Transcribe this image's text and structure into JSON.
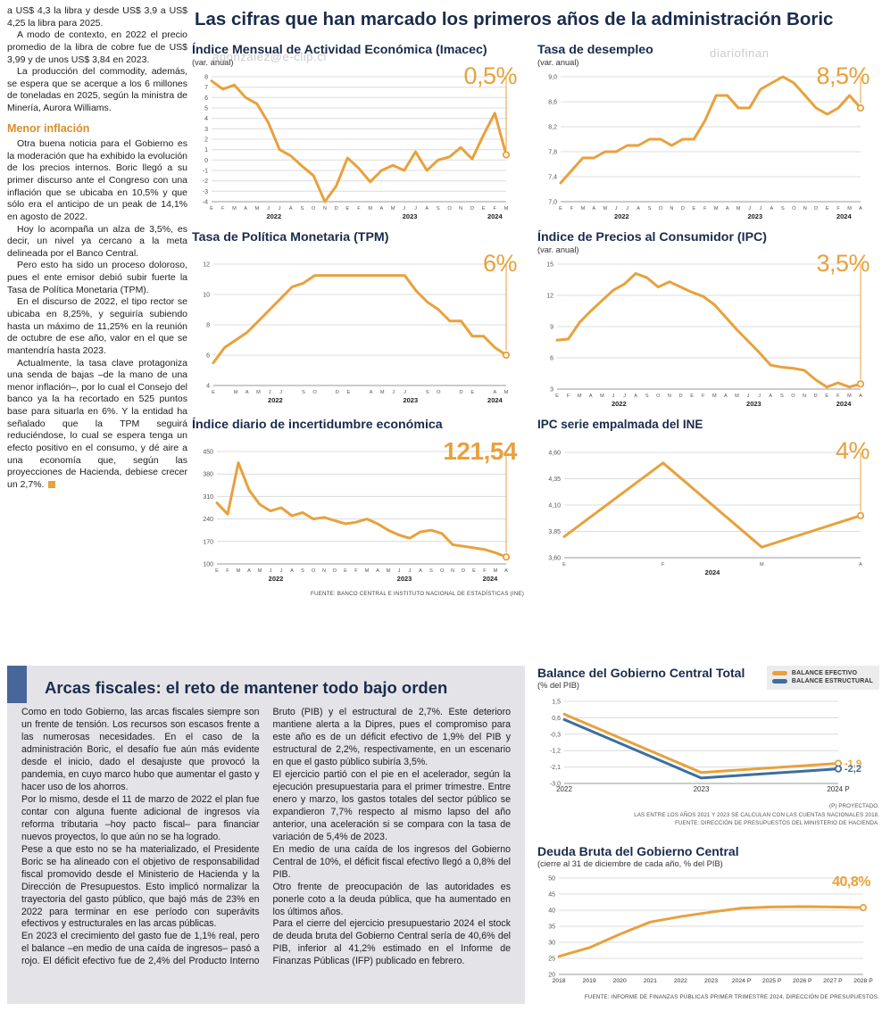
{
  "main_title": "Las cifras que han marcado los primeros años de la administración Boric",
  "colors": {
    "accent_orange": "#E8A13C",
    "navy": "#1A2B4C",
    "steel_blue": "#47679A",
    "line_blue": "#3C6E9F",
    "panel_gray": "#E4E4E8"
  },
  "watermarks": {
    "w1": "agonzalez@e-clip.cl",
    "w2": "diariofinan",
    "w3": "ero#5agonzalez@e-clip.cl"
  },
  "article_left": {
    "paragraphs_top": [
      "a US$ 4,3 la libra y desde US$ 3,9 a US$ 4,25 la libra para 2025.",
      "A modo de contexto, en 2022 el precio promedio de la libra de cobre fue de US$ 3,99 y de unos US$ 3,84 en 2023.",
      "La producción del commodity, además, se espera que se acerque a los 6 millones de toneladas en 2025, según la ministra de Minería, Aurora Williams."
    ],
    "heading": "Menor inflación",
    "paragraphs": [
      "Otra buena noticia para el Gobierno es la moderación que ha exhibido la evolución de los precios internos. Boric llegó a su primer discurso ante el Congreso con una inflación que se ubicaba en 10,5% y que sólo era el anticipo de un peak de 14,1% en agosto de 2022.",
      "Hoy lo acompaña un alza de 3,5%, es decir, un nivel ya cercano a la meta delineada por el Banco Central.",
      "Pero esto ha sido un proceso doloroso, pues el ente emisor debió subir fuerte la Tasa de Política Monetaria (TPM).",
      "En el discurso de 2022, el tipo rector se ubicaba en 8,25%, y seguiría subiendo hasta un máximo de 11,25% en la reunión de octubre de ese año, valor en el que se mantendría hasta 2023.",
      "Actualmente, la tasa clave protagoniza una senda de bajas –de la mano de una menor inflación–, por lo cual el Consejo del banco ya la ha recortado en 525 puntos base para situarla en 6%. Y la entidad ha señalado que la TPM seguirá reduciéndose, lo cual se espera tenga un efecto positivo en el consumo, y dé aire a una economía que, según las proyecciones de Hacienda, debiese crecer un 2,7%."
    ]
  },
  "arcas": {
    "title": "Arcas fiscales: el reto de mantener todo bajo orden",
    "paragraphs": [
      "Como en todo Gobierno, las arcas fiscales siempre son un frente de tensión. Los recursos son escasos frente a las numerosas necesidades. En el caso de la administración Boric, el desafío fue aún más evidente desde el inicio, dado el desajuste que provocó la pandemia, en cuyo marco hubo que aumentar el gasto y hacer uso de los ahorros.",
      "Por lo mismo, desde el 11 de marzo de 2022 el plan fue contar con alguna fuente adicional de ingresos vía reforma tributaria –hoy pacto fiscal– para financiar nuevos proyectos, lo que aún no se ha logrado.",
      "Pese a que esto no se ha materializado, el Presidente Boric se ha alineado con el objetivo de responsabilidad fiscal promovido desde el Ministerio de Hacienda y la Dirección de Presupuestos. Esto implicó normalizar la trayectoria del gasto público, que bajó más de 23% en 2022 para terminar en ese período con superávits efectivos y estructurales en las arcas públicas.",
      "En 2023 el crecimiento del gasto fue de 1,1% real, pero el balance –en medio de una caída de ingresos– pasó a rojo. El déficit efectivo fue de 2,4% del Producto Interno Bruto (PIB) y el estructural de 2,7%. Este deterioro mantiene alerta a la Dipres, pues el compromiso para este año es de un déficit efectivo de 1,9% del PIB y estructural de 2,2%, respectivamente, en un escenario en que el gasto público subiría 3,5%.",
      "El ejercicio partió con el pie en el acelerador, según la ejecución presupuestaria para el primer trimestre. Entre enero y marzo, los gastos totales del sector público se expandieron 7,7% respecto al mismo lapso del año anterior, una aceleración si se compara con la tasa de variación de 5,4% de 2023.",
      "En medio de una caída de los ingresos del Gobierno Central de 10%, el déficit fiscal efectivo llegó a 0,8% del PIB.",
      "Otro frente de preocupación de las autoridades es ponerle coto a la deuda pública, que ha aumentado en los últimos años.",
      "Para el cierre del ejercicio presupuestario 2024 el stock de deuda bruta del Gobierno Central sería de 40,6% del PIB, inferior al 41,2% estimado en el Informe de Finanzas Públicas (IFP) publicado en febrero."
    ]
  },
  "chart_data": [
    {
      "key": "imacec",
      "type": "line",
      "title": "Índice Mensual de Actividad Económica (Imacec)",
      "subtitle": "(var. anual)",
      "big_value": "0,5%",
      "ymin": -4,
      "ymax": 8,
      "pointer": true,
      "yticks": [
        {
          "l": "8",
          "v": 8
        },
        {
          "l": "7",
          "v": 7
        },
        {
          "l": "6",
          "v": 6
        },
        {
          "l": "5",
          "v": 5
        },
        {
          "l": "4",
          "v": 4
        },
        {
          "l": "3",
          "v": 3
        },
        {
          "l": "2",
          "v": 2
        },
        {
          "l": "1",
          "v": 1
        },
        {
          "l": "0",
          "v": 0
        },
        {
          "l": "-1",
          "v": -1
        },
        {
          "l": "-2",
          "v": -2
        },
        {
          "l": "-3",
          "v": -3
        },
        {
          "l": "-4",
          "v": -4
        }
      ],
      "x_labels": [
        "E",
        "F",
        "M",
        "A",
        "M",
        "J",
        "J",
        "A",
        "S",
        "O",
        "N",
        "D",
        "E",
        "F",
        "M",
        "A",
        "M",
        "J",
        "J",
        "A",
        "S",
        "O",
        "N",
        "D",
        "E",
        "F",
        "M"
      ],
      "years": [
        {
          "label": "2022",
          "at": 5.5
        },
        {
          "label": "2023",
          "at": 17.5
        },
        {
          "label": "2024",
          "at": 25
        }
      ],
      "series": [
        {
          "name": "Imacec",
          "color": "#E8A13C",
          "values": [
            7.6,
            6.8,
            7.2,
            6.0,
            5.4,
            3.6,
            1.0,
            0.4,
            -0.6,
            -1.5,
            -4.0,
            -2.5,
            0.2,
            -0.8,
            -2.1,
            -1.0,
            -0.5,
            -1.0,
            0.8,
            -1.0,
            0.0,
            0.3,
            1.2,
            0.1,
            2.4,
            4.5,
            0.5
          ]
        }
      ]
    },
    {
      "key": "desempleo",
      "type": "line",
      "title": "Tasa de desempleo",
      "subtitle": "(var. anual)",
      "big_value": "8,5%",
      "ymin": 7.0,
      "ymax": 9.0,
      "pointer": true,
      "yticks": [
        {
          "l": "9,0",
          "v": 9.0
        },
        {
          "l": "8,6",
          "v": 8.6
        },
        {
          "l": "8,2",
          "v": 8.2
        },
        {
          "l": "7,8",
          "v": 7.8
        },
        {
          "l": "7,4",
          "v": 7.4
        },
        {
          "l": "7,0",
          "v": 7.0
        }
      ],
      "x_labels": [
        "E",
        "F",
        "M",
        "A",
        "M",
        "J",
        "J",
        "A",
        "S",
        "O",
        "N",
        "D",
        "E",
        "F",
        "M",
        "A",
        "M",
        "J",
        "J",
        "A",
        "S",
        "O",
        "N",
        "D",
        "E",
        "F",
        "M",
        "A"
      ],
      "years": [
        {
          "label": "2022",
          "at": 5.5
        },
        {
          "label": "2023",
          "at": 17.5
        },
        {
          "label": "2024",
          "at": 25.5
        }
      ],
      "series": [
        {
          "name": "Tasa de desempleo",
          "color": "#E8A13C",
          "values": [
            7.3,
            7.5,
            7.7,
            7.7,
            7.8,
            7.8,
            7.9,
            7.9,
            8.0,
            8.0,
            7.9,
            8.0,
            8.0,
            8.3,
            8.7,
            8.7,
            8.5,
            8.5,
            8.8,
            8.9,
            9.0,
            8.9,
            8.7,
            8.5,
            8.4,
            8.5,
            8.7,
            8.5
          ]
        }
      ]
    },
    {
      "key": "tpm",
      "type": "line",
      "title": "Tasa de Política Monetaria (TPM)",
      "big_value": "6%",
      "ymin": 4,
      "ymax": 12,
      "pointer": true,
      "yticks": [
        {
          "l": "12",
          "v": 12
        },
        {
          "l": "10",
          "v": 10
        },
        {
          "l": "8",
          "v": 8
        },
        {
          "l": "6",
          "v": 6
        },
        {
          "l": "4",
          "v": 4
        }
      ],
      "x_labels": [
        "E",
        "",
        "M",
        "A",
        "M",
        "J",
        "J",
        "",
        "S",
        "O",
        "",
        "D",
        "E",
        "",
        "A",
        "M",
        "J",
        "J",
        "",
        "S",
        "O",
        "",
        "D",
        "E",
        "",
        "A",
        "M"
      ],
      "years": [
        {
          "label": "2022",
          "at": 5.5
        },
        {
          "label": "2023",
          "at": 17.5
        },
        {
          "label": "2024",
          "at": 25
        }
      ],
      "series": [
        {
          "name": "TPM",
          "color": "#E8A13C",
          "values": [
            5.5,
            6.5,
            7.0,
            7.5,
            8.25,
            9.0,
            9.75,
            10.5,
            10.75,
            11.25,
            11.25,
            11.25,
            11.25,
            11.25,
            11.25,
            11.25,
            11.25,
            11.25,
            10.25,
            9.5,
            9.0,
            8.25,
            8.25,
            7.25,
            7.25,
            6.5,
            6.0
          ]
        }
      ]
    },
    {
      "key": "ipc",
      "type": "line",
      "title": "Índice de Precios al Consumidor (IPC)",
      "subtitle": "(var. anual)",
      "big_value": "3,5%",
      "ymin": 3,
      "ymax": 15,
      "pointer": true,
      "yticks": [
        {
          "l": "15",
          "v": 15
        },
        {
          "l": "12",
          "v": 12
        },
        {
          "l": "9",
          "v": 9
        },
        {
          "l": "6",
          "v": 6
        },
        {
          "l": "3",
          "v": 3
        }
      ],
      "x_labels": [
        "E",
        "F",
        "M",
        "A",
        "M",
        "J",
        "J",
        "A",
        "S",
        "O",
        "N",
        "D",
        "E",
        "F",
        "M",
        "A",
        "M",
        "J",
        "J",
        "A",
        "S",
        "O",
        "N",
        "D",
        "E",
        "F",
        "M",
        "A"
      ],
      "years": [
        {
          "label": "2022",
          "at": 5.5
        },
        {
          "label": "2023",
          "at": 17.5
        },
        {
          "label": "2024",
          "at": 25.5
        }
      ],
      "series": [
        {
          "name": "IPC",
          "color": "#E8A13C",
          "values": [
            7.7,
            7.8,
            9.4,
            10.5,
            11.5,
            12.5,
            13.1,
            14.1,
            13.7,
            12.8,
            13.3,
            12.8,
            12.3,
            11.9,
            11.1,
            9.9,
            8.7,
            7.6,
            6.5,
            5.3,
            5.1,
            5.0,
            4.8,
            3.9,
            3.2,
            3.6,
            3.2,
            3.5
          ]
        }
      ]
    },
    {
      "key": "incertidumbre",
      "type": "line",
      "title": "Índice diario de incertidumbre económica",
      "big_value": "121,54",
      "ymin": 100,
      "ymax": 450,
      "pointer": true,
      "source": "FUENTE: BANCO CENTRAL E INSTITUTO NACIONAL DE ESTADÍSTICAS (INE)",
      "yticks": [
        {
          "l": "450",
          "v": 450
        },
        {
          "l": "380",
          "v": 380
        },
        {
          "l": "310",
          "v": 310
        },
        {
          "l": "240",
          "v": 240
        },
        {
          "l": "170",
          "v": 170
        },
        {
          "l": "100",
          "v": 100
        }
      ],
      "x_labels": [
        "E",
        "F",
        "M",
        "A",
        "M",
        "J",
        "J",
        "A",
        "S",
        "O",
        "N",
        "D",
        "E",
        "F",
        "M",
        "A",
        "M",
        "J",
        "J",
        "A",
        "S",
        "O",
        "N",
        "D",
        "E",
        "F",
        "M",
        "A"
      ],
      "years": [
        {
          "label": "2022",
          "at": 5.5
        },
        {
          "label": "2023",
          "at": 17.5
        },
        {
          "label": "2024",
          "at": 25.5
        }
      ],
      "series": [
        {
          "name": "Incertidumbre económica",
          "color": "#E8A13C",
          "values": [
            290,
            255,
            415,
            330,
            285,
            265,
            275,
            250,
            260,
            240,
            245,
            235,
            225,
            230,
            240,
            225,
            205,
            190,
            180,
            200,
            205,
            195,
            160,
            155,
            150,
            145,
            135,
            121.54
          ]
        }
      ]
    },
    {
      "key": "ipc_ine",
      "type": "line",
      "title": "IPC serie empalmada del INE",
      "big_value": "4%",
      "ymin": 3.6,
      "ymax": 4.6,
      "pointer": true,
      "yticks": [
        {
          "l": "4,60",
          "v": 4.6
        },
        {
          "l": "4,35",
          "v": 4.35
        },
        {
          "l": "4,10",
          "v": 4.1
        },
        {
          "l": "3,85",
          "v": 3.85
        },
        {
          "l": "3,60",
          "v": 3.6
        }
      ],
      "x_labels": [
        "E",
        "F",
        "M",
        "A"
      ],
      "years": [
        {
          "label": "2024",
          "at": 1.5
        }
      ],
      "series": [
        {
          "name": "IPC serie empalmada",
          "color": "#E8A13C",
          "values": [
            3.8,
            4.5,
            3.7,
            4.0
          ]
        }
      ]
    },
    {
      "key": "balance",
      "type": "line",
      "title": "Balance del Gobierno Central Total",
      "subtitle": "(% del PIB)",
      "ymin": -3.0,
      "ymax": 1.5,
      "pointer": false,
      "legend": [
        {
          "label": "BALANCE EFECTIVO",
          "color": "#E8A13C"
        },
        {
          "label": "BALANCE ESTRUCTURAL",
          "color": "#3C6E9F"
        }
      ],
      "yticks": [
        {
          "l": "1,5",
          "v": 1.5
        },
        {
          "l": "0,6",
          "v": 0.6
        },
        {
          "l": "-0,3",
          "v": -0.3
        },
        {
          "l": "-1,2",
          "v": -1.2
        },
        {
          "l": "-2,1",
          "v": -2.1
        },
        {
          "l": "-3,0",
          "v": -3.0
        }
      ],
      "x_labels": [
        "2022",
        "2023",
        "2024 P"
      ],
      "series": [
        {
          "name": "Balance efectivo",
          "color": "#E8A13C",
          "values": [
            0.8,
            -2.4,
            -1.9
          ],
          "end_label": "-1,9"
        },
        {
          "name": "Balance estructural",
          "color": "#3C6E9F",
          "values": [
            0.5,
            -2.7,
            -2.2
          ],
          "end_label": "-2,2"
        }
      ],
      "footnotes": [
        "(P) PROYECTADO.",
        "LAS ENTRE LOS AÑOS 2021 Y 2023 SE CALCULAN CON LAS CUENTAS NACIONALES 2018.",
        "FUENTE: DIRECCIÓN DE PRESUPUESTOS DEL MINISTERIO DE HACIENDA."
      ]
    },
    {
      "key": "deuda",
      "type": "line",
      "title": "Deuda Bruta del Gobierno Central",
      "subtitle": "(cierre al 31 de diciembre de cada año, % del PIB)",
      "big_value": "40,8%",
      "ymin": 20,
      "ymax": 50,
      "pointer": false,
      "source": "FUENTE: INFORME DE FINANZAS PÚBLICAS PRIMER TRIMESTRE 2024, DIRECCIÓN DE PRESUPUESTOS.",
      "yticks": [
        {
          "l": "50",
          "v": 50
        },
        {
          "l": "45",
          "v": 45
        },
        {
          "l": "40",
          "v": 40
        },
        {
          "l": "35",
          "v": 35
        },
        {
          "l": "30",
          "v": 30
        },
        {
          "l": "25",
          "v": 25
        },
        {
          "l": "20",
          "v": 20
        }
      ],
      "x_labels": [
        "2018",
        "2019",
        "2020",
        "2021",
        "2022",
        "2023",
        "2024 P",
        "2025 P",
        "2026 P",
        "2027 P",
        "2028 P"
      ],
      "series": [
        {
          "name": "Deuda bruta",
          "color": "#E8A13C",
          "values": [
            25.6,
            28.3,
            32.5,
            36.3,
            38.0,
            39.4,
            40.6,
            41.0,
            41.1,
            41.0,
            40.8
          ]
        }
      ]
    }
  ]
}
